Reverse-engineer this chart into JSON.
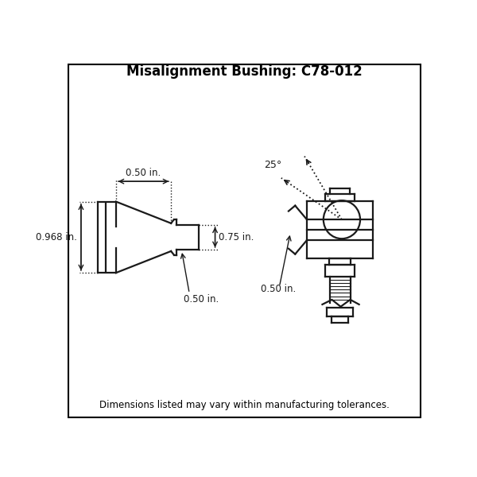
{
  "title": "Misalignment Bushing: C78-012",
  "title_fontsize": 12,
  "footer": "Dimensions listed may vary within manufacturing tolerances.",
  "footer_fontsize": 8.5,
  "background_color": "#ffffff",
  "border_color": "#000000",
  "line_color": "#1a1a1a",
  "dim_color": "#1a1a1a",
  "dim_fontsize": 8.5,
  "dims": {
    "width_label": "0.50 in.",
    "height_label": "0.968 in.",
    "od_label": "0.75 in.",
    "id_label": "0.50 in.",
    "angle_label": "25°"
  }
}
